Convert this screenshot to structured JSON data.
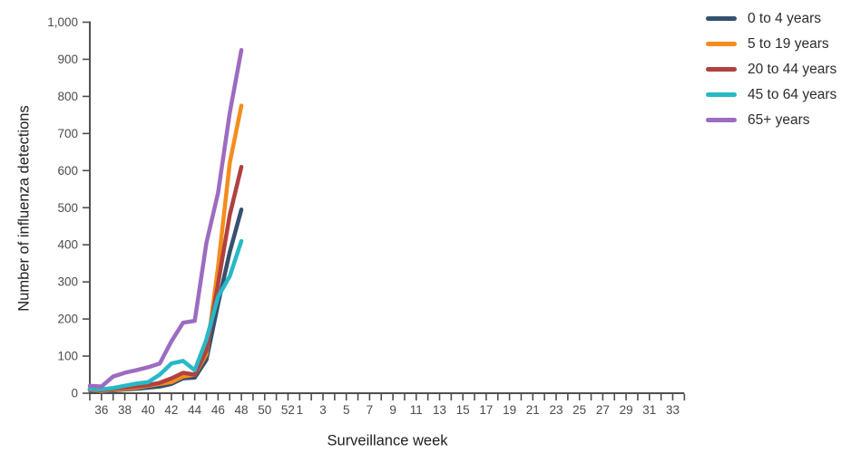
{
  "chart_data": {
    "type": "line",
    "title": "",
    "xlabel": "Surveillance week",
    "ylabel": "Number of influenza detections",
    "grid": false,
    "legend_position": "top-right",
    "ylim": [
      0,
      1000
    ],
    "y_ticks": [
      {
        "value": 0,
        "label": "0"
      },
      {
        "value": 100,
        "label": "100"
      },
      {
        "value": 200,
        "label": "200"
      },
      {
        "value": 300,
        "label": "300"
      },
      {
        "value": 400,
        "label": "400"
      },
      {
        "value": 500,
        "label": "500"
      },
      {
        "value": 600,
        "label": "600"
      },
      {
        "value": 700,
        "label": "700"
      },
      {
        "value": 800,
        "label": "800"
      },
      {
        "value": 900,
        "label": "900"
      },
      {
        "value": 1000,
        "label": "1,000"
      }
    ],
    "x_tick_labels": [
      "",
      "36",
      "",
      "38",
      "",
      "40",
      "",
      "42",
      "",
      "44",
      "",
      "46",
      "",
      "48",
      "",
      "50",
      "",
      "52",
      "1",
      "",
      "3",
      "",
      "5",
      "",
      "7",
      "",
      "9",
      "",
      "11",
      "",
      "13",
      "",
      "15",
      "",
      "17",
      "",
      "19",
      "",
      "21",
      "",
      "23",
      "",
      "25",
      "",
      "27",
      "",
      "29",
      "",
      "31",
      "",
      "33",
      ""
    ],
    "weeks": [
      35,
      36,
      37,
      38,
      39,
      40,
      41,
      42,
      43,
      44,
      45,
      46,
      47,
      48
    ],
    "series": [
      {
        "name": "0 to 4 years",
        "color": "#35516f",
        "values": [
          8,
          5,
          8,
          10,
          12,
          15,
          18,
          25,
          40,
          42,
          90,
          240,
          380,
          495
        ]
      },
      {
        "name": "5 to 19 years",
        "color": "#f68c1e",
        "values": [
          10,
          6,
          10,
          12,
          15,
          20,
          25,
          30,
          45,
          50,
          105,
          340,
          620,
          775
        ]
      },
      {
        "name": "20 to 44 years",
        "color": "#b04140",
        "values": [
          12,
          8,
          12,
          15,
          18,
          22,
          28,
          40,
          55,
          50,
          115,
          295,
          480,
          610
        ]
      },
      {
        "name": "45 to 64 years",
        "color": "#28b8c6",
        "values": [
          12,
          10,
          14,
          20,
          26,
          30,
          50,
          80,
          87,
          62,
          145,
          260,
          315,
          410
        ]
      },
      {
        "name": "65+ years",
        "color": "#9c6cc0",
        "values": [
          20,
          18,
          45,
          55,
          62,
          70,
          80,
          140,
          190,
          195,
          405,
          540,
          755,
          925
        ]
      }
    ],
    "axis_color": "#4f4f4f"
  }
}
